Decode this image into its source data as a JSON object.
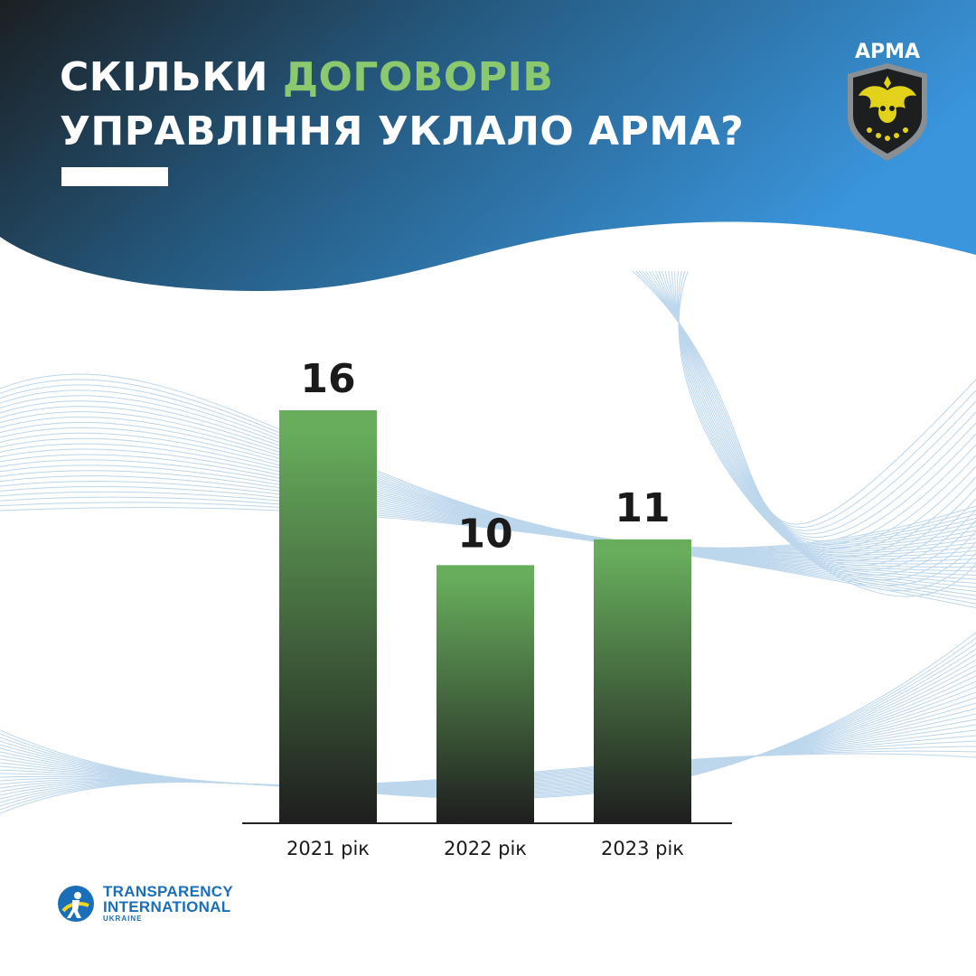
{
  "header": {
    "title_part1": "СКІЛЬКИ ",
    "title_accent": "ДОГОВОРІВ",
    "title_line2": "УПРАВЛІННЯ УКЛАЛО АРМА?",
    "accent_color": "#8cc96e"
  },
  "logo_arma": {
    "text": "АРМА",
    "icon": "owl-shield-icon"
  },
  "footer_logo": {
    "line1": "TRANSPARENCY",
    "line2": "INTERNATIONAL",
    "line3": "UKRAINE",
    "icon": "ti-globe-icon"
  },
  "colors": {
    "header_dark": "#1c2024",
    "header_blue": "#3a93d8",
    "bar_top": "#67ad5c",
    "bar_bottom": "#1e1e1e",
    "text_dark": "#1a1a1a"
  },
  "chart_data": {
    "type": "bar",
    "categories": [
      "2021 рік",
      "2022 рік",
      "2023 рік"
    ],
    "values": [
      16,
      10,
      11
    ],
    "title": "СКІЛЬКИ ДОГОВОРІВ УПРАВЛІННЯ УКЛАЛО АРМА?",
    "xlabel": "",
    "ylabel": "",
    "ylim": [
      0,
      16
    ],
    "grid": false,
    "legend": "none",
    "data_labels": true
  }
}
